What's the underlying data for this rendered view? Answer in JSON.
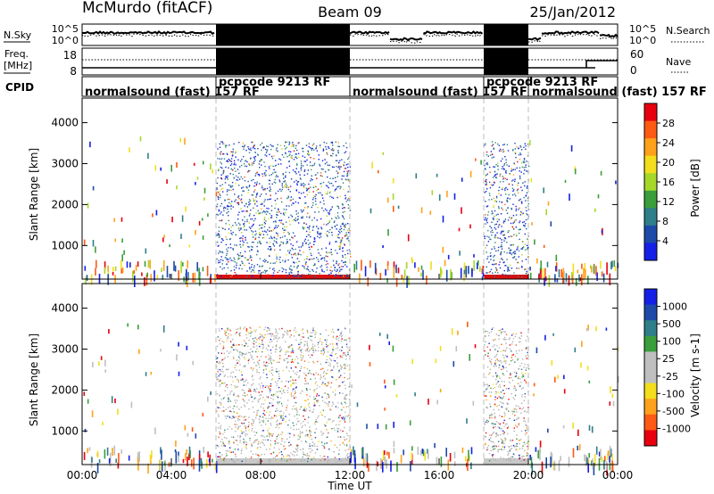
{
  "header": {
    "station": "McMurdo (fitACF)",
    "beam": "Beam 09",
    "date": "25/Jan/2012"
  },
  "panel_labels": {
    "nsky": "N.Sky",
    "freq": "Freq.",
    "freq_unit": "[MHz]",
    "cpid": "CPID",
    "nsearch": "N.Search",
    "nave": "Nave"
  },
  "colors": {
    "ink": "#000000",
    "dash": "#bdbdbd",
    "ground": "#c8c8c8",
    "power_scale": [
      "#1420e8",
      "#1d4aa8",
      "#2f7e8a",
      "#3a9e3a",
      "#a6d82a",
      "#f2de1c",
      "#ffa11a",
      "#ff5a14",
      "#e8000e"
    ],
    "velocity_scale": [
      "#e8000e",
      "#ff5a14",
      "#ffa11a",
      "#f2de1c",
      "#bfbfbf",
      "#bfbfbf",
      "#3a9e3a",
      "#2f7e8a",
      "#1d4aa8",
      "#1420e8"
    ]
  },
  "chart_data": [
    {
      "type": "line",
      "panel": "noise",
      "y_left_label": "N.Sky",
      "y_right_label": "N.Search",
      "left_ticks": [
        "10^5",
        "10^0"
      ],
      "right_ticks": [
        "10^5",
        "10^0"
      ],
      "x_range_hours": [
        0,
        24
      ],
      "filled_intervals_hours": [
        [
          6,
          12
        ],
        [
          18,
          20
        ]
      ]
    },
    {
      "type": "line",
      "panel": "frequency",
      "y_left_label": "Freq. [MHz]",
      "y_right_label": "Nave",
      "left_ticks": [
        "18",
        "8"
      ],
      "right_ticks": [
        "60",
        "0"
      ],
      "filled_intervals_hours": [
        [
          6,
          12
        ],
        [
          18,
          20
        ]
      ]
    },
    {
      "type": "table",
      "panel": "cpid",
      "entries": [
        {
          "start_h": 0,
          "text": "normalsound (fast) 157 RF"
        },
        {
          "start_h": 6,
          "text": "pcpcode 9213 RF"
        },
        {
          "start_h": 12,
          "text": "normalsound (fast) 157 RF"
        },
        {
          "start_h": 18,
          "text": "pcpcode 9213 RF"
        },
        {
          "start_h": 20,
          "text": "normalsound (fast) 157 RF"
        }
      ]
    },
    {
      "type": "heatmap",
      "panel": "power",
      "ylabel": "Slant Range [km]",
      "yticks": [
        1000,
        2000,
        3000,
        4000
      ],
      "ylim": [
        180,
        4600
      ],
      "colorbar_label": "Power [dB]",
      "colorbar_ticks": [
        4,
        8,
        12,
        16,
        20,
        24,
        28
      ],
      "colorbar_range": [
        0,
        32
      ],
      "dense_intervals_hours": [
        [
          6,
          12
        ],
        [
          18,
          20
        ]
      ],
      "dense_max_range_km": 3550
    },
    {
      "type": "heatmap",
      "panel": "velocity",
      "ylabel": "Slant Range [km]",
      "yticks": [
        1000,
        2000,
        3000,
        4000
      ],
      "ylim": [
        180,
        4600
      ],
      "colorbar_label": "Velocity [m s-1]",
      "colorbar_ticks": [
        -1000,
        -500,
        -100,
        -25,
        25,
        100,
        500,
        1000
      ],
      "dense_intervals_hours": [
        [
          6,
          12
        ],
        [
          18,
          20
        ]
      ],
      "dense_max_range_km": 3550
    }
  ],
  "xaxis": {
    "label": "Time UT",
    "ticks": [
      "00:00",
      "04:00",
      "08:00",
      "12:00",
      "16:00",
      "20:00",
      "00:00"
    ],
    "tick_hours": [
      0,
      4,
      8,
      12,
      16,
      20,
      24
    ],
    "range_hours": [
      0,
      24
    ],
    "dashed_hours": [
      6,
      12,
      18,
      20
    ]
  }
}
